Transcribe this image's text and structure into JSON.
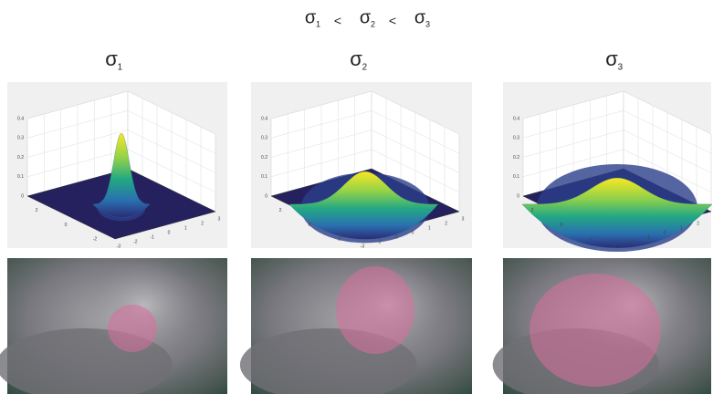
{
  "title": {
    "terms": [
      {
        "symbol": "σ",
        "sub": "1"
      },
      {
        "symbol": "σ",
        "sub": "2"
      },
      {
        "symbol": "σ",
        "sub": "3"
      }
    ],
    "relation": "<"
  },
  "panels": [
    {
      "label": {
        "symbol": "σ",
        "sub": "1"
      },
      "plot": {
        "zticks": [
          "0",
          "0.1",
          "0.2",
          "0.3",
          "0.4"
        ],
        "xticks": [
          "-3",
          "-2",
          "-1",
          "0",
          "1",
          "2",
          "3"
        ],
        "yticks": [
          "2",
          "0",
          "-2"
        ]
      }
    },
    {
      "label": {
        "symbol": "σ",
        "sub": "2"
      },
      "plot": {
        "zticks": [
          "0",
          "0.1",
          "0.2",
          "0.3",
          "0.4"
        ],
        "xticks": [
          "-3",
          "-2",
          "-1",
          "0",
          "1",
          "2",
          "3"
        ],
        "yticks": [
          "2",
          "0",
          "-2"
        ]
      }
    },
    {
      "label": {
        "symbol": "σ",
        "sub": "3"
      },
      "plot": {
        "zticks": [
          "0",
          "0.1",
          "0.2",
          "0.3",
          "0.4"
        ],
        "xticks": [
          "-3",
          "-2",
          "-1",
          "0",
          "1",
          "2",
          "3"
        ],
        "yticks": [
          "2",
          "0",
          "-2"
        ]
      }
    }
  ]
}
